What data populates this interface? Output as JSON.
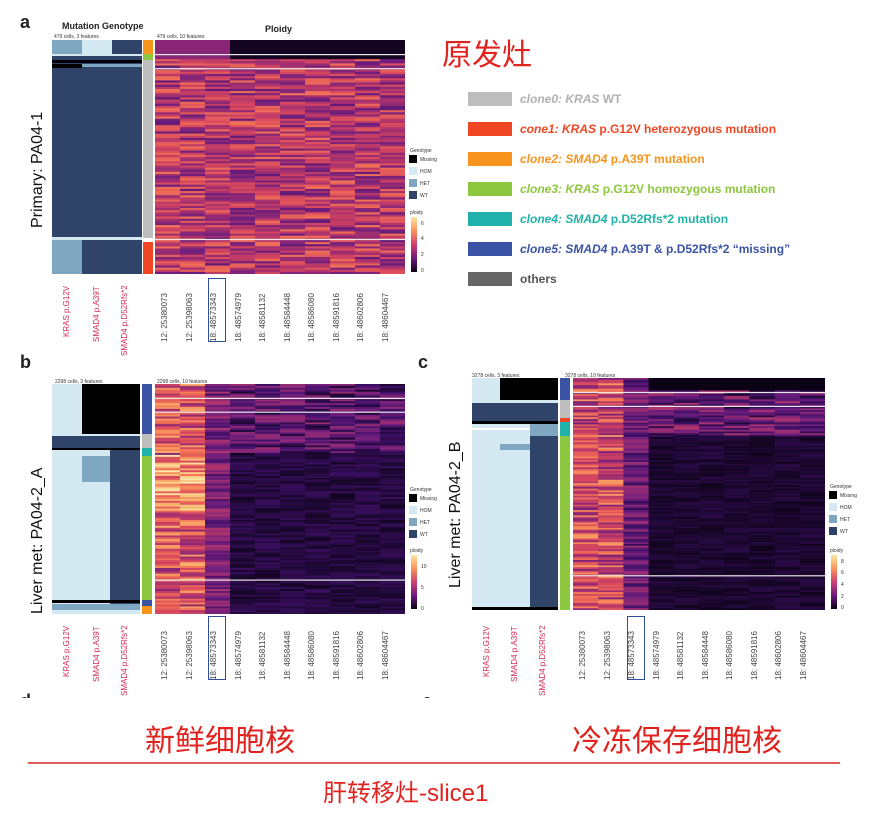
{
  "annotations": {
    "primary_cn": "原发灶",
    "fresh_cn": "新鲜细胞核",
    "frozen_cn": "冷冻保存细胞核",
    "footer_cn": "肝转移灶-slice1"
  },
  "panel_a": {
    "letter": "a",
    "row_label": "Primary: PA04-1",
    "genotype_title": "Mutation Genotype",
    "ploidy_title": "Ploidy",
    "genotype_note": "479 cells, 3 features",
    "ploidy_note": "479 cells, 10 features",
    "ploidy_scale": [
      "0",
      "2",
      "4",
      "6"
    ]
  },
  "panel_b": {
    "letter": "b",
    "row_label": "Liver met: PA04-2_A",
    "genotype_note": "2298 cells, 3 features",
    "ploidy_note": "2298 cells, 10 features",
    "ploidy_scale": [
      "0",
      "5",
      "10"
    ]
  },
  "panel_c": {
    "letter": "c",
    "row_label": "Liver met: PA04-2_B",
    "genotype_note": "3278 cells, 3 features",
    "ploidy_note": "3278 cells, 10 features",
    "ploidy_scale": [
      "0",
      "2",
      "4",
      "6",
      "8"
    ]
  },
  "partial_letters": {
    "d": "d",
    "e": "e"
  },
  "mutation_labels": [
    "KRAS p.G12V",
    "SMAD4 p.A39T",
    "SMAD4 p.D52Rfs*2"
  ],
  "ploidy_labels": [
    "12: 25380073",
    "12: 25398063",
    "18: 48573343",
    "18: 48574979",
    "18: 48581132",
    "18: 48584448",
    "18: 48586080",
    "18: 48591816",
    "18: 48602806",
    "18: 48604467"
  ],
  "genotype_legend": {
    "title": "Genotype",
    "items": [
      "Missing",
      "HOM",
      "HET",
      "WT"
    ],
    "colors": [
      "#000000",
      "#d4e9f1",
      "#7fa7c1",
      "#2f4468"
    ]
  },
  "ploidy_legend_title": "ploidy",
  "clone_legend": [
    {
      "label_italic": "clone0: ",
      "gene": "KRAS",
      "label_rest": " WT",
      "color": "#bdbdbd",
      "text_color": "#b0b0b0"
    },
    {
      "label_italic": "cone1: ",
      "gene": "KRAS",
      "label_rest": " p.G12V heterozygous mutation",
      "color": "#ef4723",
      "text_color": "#ef4723"
    },
    {
      "label_italic": "clone2: ",
      "gene": "SMAD4",
      "label_rest": " p.A39T mutation",
      "color": "#f7941d",
      "text_color": "#f7941d"
    },
    {
      "label_italic": "clone3: ",
      "gene": "KRAS",
      "label_rest": " p.G12V homozygous mutation",
      "color": "#8dc63f",
      "text_color": "#8dc63f"
    },
    {
      "label_italic": "clone4: ",
      "gene": "SMAD4",
      "label_rest": " p.D52Rfs*2 mutation",
      "color": "#20b2aa",
      "text_color": "#20b2aa"
    },
    {
      "label_italic": "clone5: ",
      "gene": "SMAD4",
      "label_rest": " p.A39T & p.D52Rfs*2 “missing”",
      "color": "#3a53a4",
      "text_color": "#3a53a4"
    },
    {
      "label_italic": "",
      "gene": "",
      "label_rest": "others",
      "color": "#666666",
      "text_color": "#555555"
    }
  ],
  "colors": {
    "annotation_red": "#e0231f",
    "highlight_box": "#2f4f9e"
  }
}
